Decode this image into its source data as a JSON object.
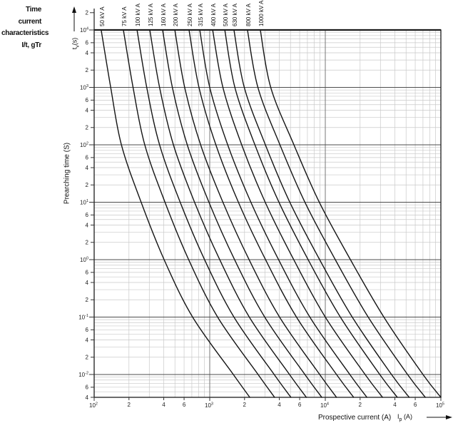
{
  "header": {
    "title_lines": [
      "Time current",
      "characteristics",
      "I/t, gTr"
    ]
  },
  "axes": {
    "y": {
      "title": "Prearching time (S)",
      "symbol": "t",
      "symbol_sub": "v",
      "symbol_unit": "(s)",
      "decade_exponents": [
        4,
        3,
        2,
        1,
        0,
        -1,
        -2
      ],
      "minor_labels": [
        2,
        4,
        6
      ],
      "extra_top_label": "2",
      "range": [
        0.004,
        20000
      ]
    },
    "x": {
      "title": "Prospective current (A)",
      "symbol": "I",
      "symbol_sub": "p",
      "symbol_unit": "(A)",
      "decade_exponents": [
        2,
        3,
        4,
        5
      ],
      "minor_labels": [
        2,
        4,
        6
      ],
      "range": [
        100,
        100000
      ]
    }
  },
  "chart_data": {
    "type": "line",
    "title": "Time current characteristics I/t, gTr",
    "xlabel": "Prospective current (A)",
    "ylabel": "Prearching time (S)",
    "x_scale": "log",
    "y_scale": "log",
    "xlim": [
      100,
      100000
    ],
    "ylim": [
      0.004,
      10000
    ],
    "grid": "log-log minor grid on",
    "legend_position": "labels rotated above top edge at each curve start",
    "times_s": [
      10000,
      1000,
      100,
      10,
      1,
      0.1,
      0.01,
      0.004
    ],
    "series": [
      {
        "name": "50 kV A",
        "currents_A": [
          115,
          139,
          172,
          255,
          403,
          711,
          1600,
          2220
        ]
      },
      {
        "name": "75 kV A",
        "currents_A": [
          179,
          217,
          274,
          410,
          657,
          1170,
          2620,
          3640
        ]
      },
      {
        "name": "100 kV A",
        "currents_A": [
          235,
          285,
          368,
          555,
          902,
          1620,
          3610,
          5040
        ]
      },
      {
        "name": "125 kV A",
        "currents_A": [
          303,
          368,
          485,
          739,
          1220,
          2200,
          4900,
          6850
        ]
      },
      {
        "name": "160 kV A",
        "currents_A": [
          391,
          475,
          639,
          984,
          1640,
          2990,
          6660,
          9320
        ]
      },
      {
        "name": "200 kV A",
        "currents_A": [
          499,
          607,
          834,
          1300,
          2190,
          4020,
          8940,
          12500
        ]
      },
      {
        "name": "250 kV A",
        "currents_A": [
          662,
          807,
          1130,
          1770,
          3040,
          5630,
          12500,
          17600
        ]
      },
      {
        "name": "315 kV A",
        "currents_A": [
          820,
          1000,
          1430,
          2270,
          3940,
          7350,
          16300,
          22900
        ]
      },
      {
        "name": "400 kV A",
        "currents_A": [
          1060,
          1300,
          1890,
          3020,
          5330,
          10000,
          22100,
          31300
        ]
      },
      {
        "name": "500 kV A",
        "currents_A": [
          1350,
          1650,
          2460,
          3970,
          7100,
          13500,
          29600,
          42000
        ]
      },
      {
        "name": "630 kV A",
        "currents_A": [
          1620,
          1990,
          3030,
          4930,
          8930,
          17100,
          37400,
          53200
        ]
      },
      {
        "name": "800 kV A",
        "currents_A": [
          2120,
          2610,
          4050,
          6660,
          12200,
          23500,
          51500,
          73400
        ]
      },
      {
        "name": "1000 kV A",
        "currents_A": [
          2740,
          3370,
          5350,
          8870,
          16500,
          32100,
          70000,
          100000
        ]
      }
    ]
  },
  "colors": {
    "curve": "#141414",
    "grid_minor": "#c9c9c9",
    "grid_major_h": "#4d4d4d",
    "grid_major_v": "#777777",
    "frame": "#1c1c1c",
    "tick_text": "#222222"
  }
}
